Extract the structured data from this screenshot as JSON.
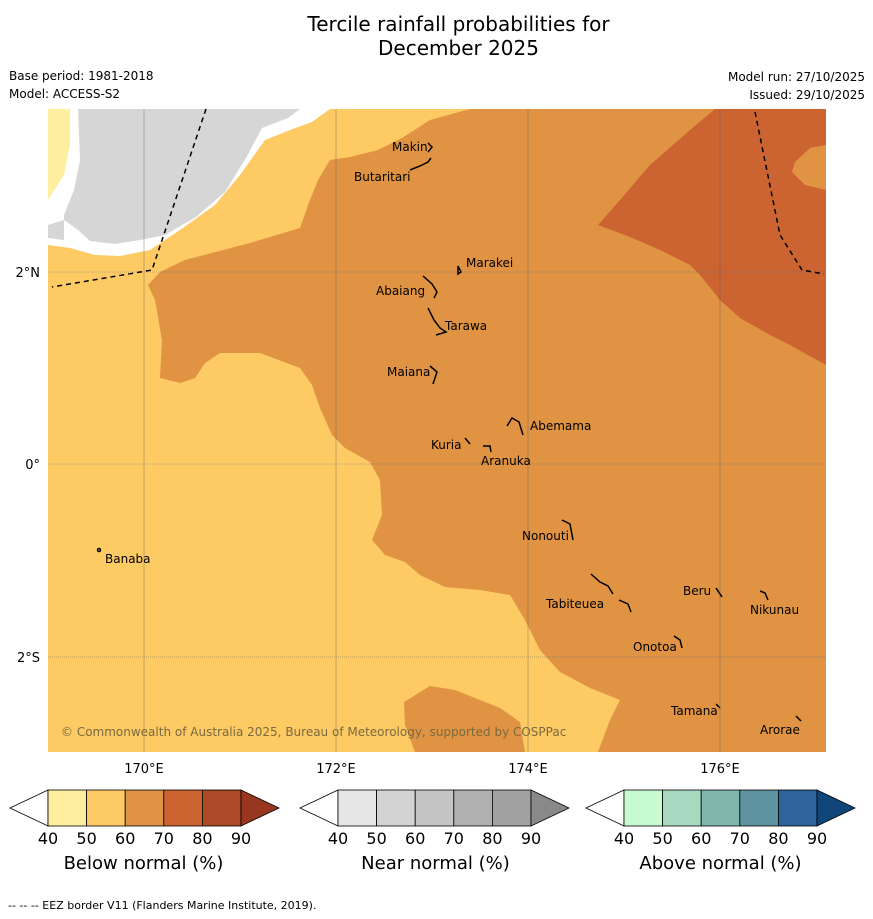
{
  "title": [
    "Tercile rainfall probabilities for",
    "December 2025"
  ],
  "base_period": "Base period: 1981-2018",
  "model": "Model: ACCESS-S2",
  "model_run": "Model run: 27/10/2025",
  "issued": "Issued: 29/10/2025",
  "copyright": "© Commonwealth of Australia 2025, Bureau of Meteorology, supported by COSPPac",
  "footer": "--  --  -- EEZ border V11 (Flanders Marine Institute, 2019).",
  "lat_labels": [
    "2°N",
    "0°",
    "2°S"
  ],
  "lon_labels": [
    "170°E",
    "172°E",
    "174°E",
    "176°E"
  ],
  "places": [
    "Makin",
    "Butaritari",
    "Marakei",
    "Abaiang",
    "Tarawa",
    "Maiana",
    "Abemama",
    "Kuria",
    "Aranuka",
    "Nonouti",
    "Banaba",
    "Tabiteuea",
    "Beru",
    "Nikunau",
    "Onotoa",
    "Tamana",
    "Arorae"
  ],
  "colorbars": [
    {
      "name": "below",
      "title": "Below normal (%)",
      "ticks": [
        "40",
        "50",
        "60",
        "70",
        "80",
        "90"
      ],
      "colors": [
        "#ffffff",
        "#feeea0",
        "#fdca63",
        "#e09342",
        "#cb6431",
        "#ae4a27",
        "#993620"
      ]
    },
    {
      "name": "near",
      "title": "Near normal (%)",
      "ticks": [
        "40",
        "50",
        "60",
        "70",
        "80",
        "90"
      ],
      "colors": [
        "#ffffff",
        "#e6e6e6",
        "#d3d3d3",
        "#c5c5c5",
        "#b0b0b0",
        "#a0a0a0",
        "#898989"
      ]
    },
    {
      "name": "above",
      "title": "Above normal (%)",
      "ticks": [
        "40",
        "50",
        "60",
        "70",
        "80",
        "90"
      ],
      "colors": [
        "#ffffff",
        "#c8fbd2",
        "#a7d9c0",
        "#80b7ad",
        "#5e93a2",
        "#2e6499",
        "#10457a"
      ]
    }
  ]
}
